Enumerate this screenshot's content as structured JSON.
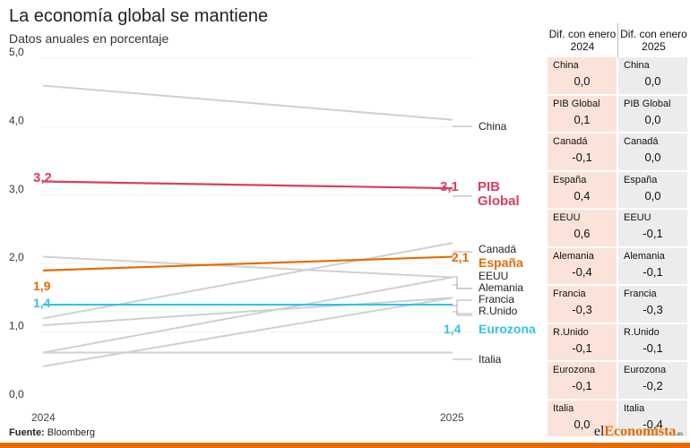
{
  "title": "La economía global se mantiene",
  "subtitle": "Datos anuales en porcentaje",
  "source_label": "Fuente:",
  "source_value": "Bloomberg",
  "brand": {
    "pre": "el",
    "mid": "Economista",
    "suf": ".es"
  },
  "colors": {
    "gray": "#d0d0d0",
    "pib": "#d8405e",
    "espana": "#e46b00",
    "eurozona": "#33c1ec",
    "accent": "#e46b00"
  },
  "chart_data": {
    "type": "line",
    "x": [
      "2024",
      "2025"
    ],
    "ylim": [
      0,
      5
    ],
    "yticks": [
      "0,0",
      "1,0",
      "2,0",
      "3,0",
      "4,0",
      "5,0"
    ],
    "series": [
      {
        "name": "China",
        "values": [
          4.6,
          4.1
        ],
        "color": "gray"
      },
      {
        "name": "PIB Global",
        "values": [
          3.2,
          3.1
        ],
        "color": "pib"
      },
      {
        "name": "Canadá",
        "values": [
          1.2,
          2.3
        ],
        "color": "gray"
      },
      {
        "name": "España",
        "values": [
          1.9,
          2.1
        ],
        "color": "espana"
      },
      {
        "name": "EEUU",
        "values": [
          2.1,
          1.8
        ],
        "color": "gray"
      },
      {
        "name": "Alemania",
        "values": [
          0.7,
          1.8
        ],
        "color": "gray"
      },
      {
        "name": "Francia",
        "values": [
          1.1,
          1.5
        ],
        "color": "gray"
      },
      {
        "name": "R.Unido",
        "values": [
          0.5,
          1.5
        ],
        "color": "gray"
      },
      {
        "name": "Eurozona",
        "values": [
          1.4,
          1.4
        ],
        "color": "eurozona"
      },
      {
        "name": "Italia",
        "values": [
          0.7,
          0.7
        ],
        "color": "gray"
      }
    ],
    "data_labels": {
      "pib_2024": "3,2",
      "pib_2025": "3,1",
      "espana_2024": "1,9",
      "espana_2025": "2,1",
      "eurozona_2024": "1,4",
      "eurozona_2025": "1,4"
    },
    "right_labels": {
      "china": "China",
      "pib_1": "PIB",
      "pib_2": "Global",
      "canada": "Canadá",
      "espana": "España",
      "eeuu": "EEUU",
      "alemania": "Alemania",
      "francia": "Francia",
      "runido": "R.Unido",
      "eurozona": "Eurozona",
      "italia": "Italia"
    }
  },
  "table": {
    "headers": [
      "Dif. con enero 2024",
      "Dif. con enero 2025"
    ],
    "rows": [
      {
        "name": "China",
        "d2024": "0,0",
        "d2025": "0,0"
      },
      {
        "name": "PIB Global",
        "d2024": "0,1",
        "d2025": "0,0"
      },
      {
        "name": "Canadá",
        "d2024": "-0,1",
        "d2025": "0,0"
      },
      {
        "name": "España",
        "d2024": "0,4",
        "d2025": "0,0"
      },
      {
        "name": "EEUU",
        "d2024": "0,6",
        "d2025": "-0,1"
      },
      {
        "name": "Alemania",
        "d2024": "-0,4",
        "d2025": "-0,1"
      },
      {
        "name": "Francia",
        "d2024": "-0,3",
        "d2025": "-0,3"
      },
      {
        "name": "R.Unido",
        "d2024": "-0,1",
        "d2025": "-0,1"
      },
      {
        "name": "Eurozona",
        "d2024": "-0,1",
        "d2025": "-0,2"
      },
      {
        "name": "Italia",
        "d2024": "0,0",
        "d2025": "-0,4"
      }
    ]
  }
}
